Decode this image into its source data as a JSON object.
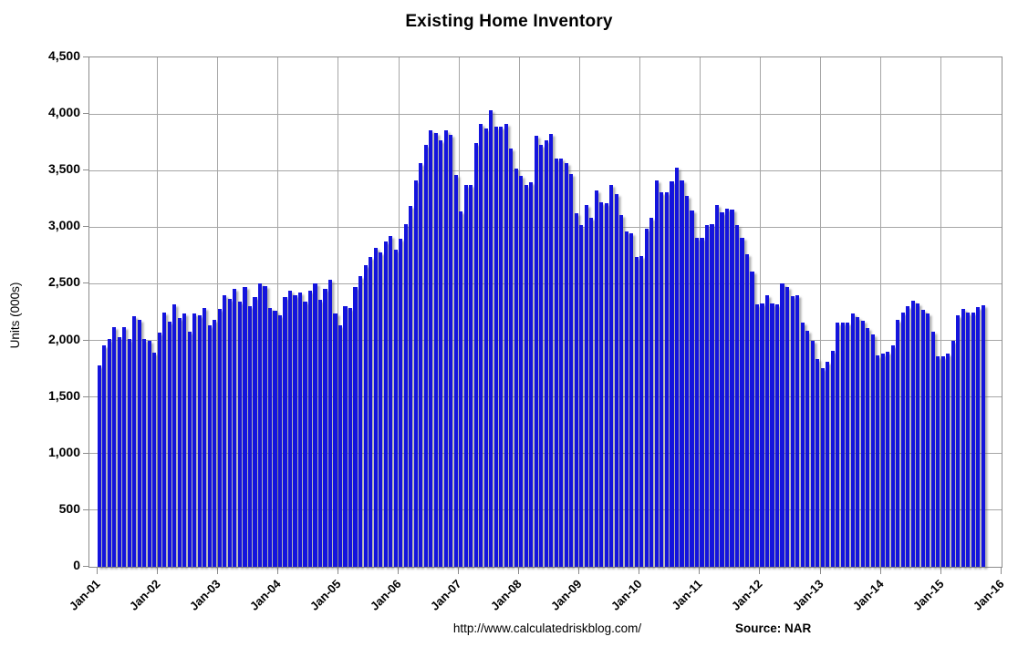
{
  "title": "Existing Home Inventory",
  "y_axis_title": "Units (000s)",
  "footer": {
    "url": "http://www.calculatedriskblog.com/",
    "source": "Source: NAR"
  },
  "chart_data": {
    "type": "bar",
    "title": "Existing Home Inventory",
    "xlabel": "",
    "ylabel": "Units (000s)",
    "ylim": [
      0,
      4500
    ],
    "y_tick_step": 500,
    "y_ticks": [
      {
        "value": 0,
        "label": "0"
      },
      {
        "value": 500,
        "label": "500"
      },
      {
        "value": 1000,
        "label": "1,000"
      },
      {
        "value": 1500,
        "label": "1,500"
      },
      {
        "value": 2000,
        "label": "2,000"
      },
      {
        "value": 2500,
        "label": "2,500"
      },
      {
        "value": 3000,
        "label": "3,000"
      },
      {
        "value": 3500,
        "label": "3,500"
      },
      {
        "value": 4000,
        "label": "4,000"
      },
      {
        "value": 4500,
        "label": "4,500"
      }
    ],
    "x_tick_labels": [
      "Jan-01",
      "Jan-02",
      "Jan-03",
      "Jan-04",
      "Jan-05",
      "Jan-06",
      "Jan-07",
      "Jan-08",
      "Jan-09",
      "Jan-10",
      "Jan-11",
      "Jan-12",
      "Jan-13",
      "Jan-14",
      "Jan-15",
      "Jan-16"
    ],
    "grid": true,
    "legend": "none",
    "bar_color": "#1414dd",
    "start_month": "2001-01",
    "end_month": "2015-09",
    "series": [
      {
        "name": "Existing Home Inventory (000s of units, monthly, NSA)",
        "monthly_values": [
          1780,
          1960,
          2010,
          2120,
          2030,
          2115,
          2015,
          2210,
          2185,
          2010,
          2000,
          1890,
          2070,
          2250,
          2165,
          2320,
          2200,
          2240,
          2075,
          2240,
          2220,
          2285,
          2130,
          2180,
          2280,
          2400,
          2365,
          2455,
          2340,
          2470,
          2300,
          2380,
          2505,
          2480,
          2290,
          2265,
          2225,
          2385,
          2440,
          2400,
          2425,
          2345,
          2440,
          2505,
          2360,
          2455,
          2535,
          2235,
          2130,
          2300,
          2290,
          2470,
          2565,
          2665,
          2740,
          2820,
          2780,
          2875,
          2920,
          2800,
          2900,
          3030,
          3190,
          3410,
          3570,
          3730,
          3860,
          3835,
          3770,
          3860,
          3815,
          3460,
          3140,
          3370,
          3370,
          3740,
          3915,
          3875,
          4035,
          3885,
          3885,
          3915,
          3695,
          3520,
          3455,
          3375,
          3400,
          3805,
          3725,
          3765,
          3820,
          3605,
          3605,
          3565,
          3470,
          3120,
          3020,
          3195,
          3080,
          3325,
          3220,
          3215,
          3370,
          3295,
          3110,
          2960,
          2945,
          2735,
          2745,
          2985,
          3080,
          3410,
          3310,
          3305,
          3405,
          3525,
          3410,
          3280,
          3150,
          2905,
          2905,
          3015,
          3025,
          3200,
          3135,
          3165,
          3155,
          3015,
          2905,
          2760,
          2610,
          2320,
          2330,
          2400,
          2330,
          2315,
          2505,
          2470,
          2395,
          2400,
          2160,
          2085,
          2000,
          1835,
          1755,
          1810,
          1910,
          2155,
          2155,
          2155,
          2240,
          2205,
          2170,
          2110,
          2055,
          1865,
          1885,
          1900,
          1960,
          2185,
          2245,
          2305,
          2350,
          2325,
          2270,
          2240,
          2075,
          1860,
          1860,
          1885,
          1995,
          2225,
          2275,
          2250,
          2250,
          2295,
          2310
        ]
      }
    ]
  }
}
